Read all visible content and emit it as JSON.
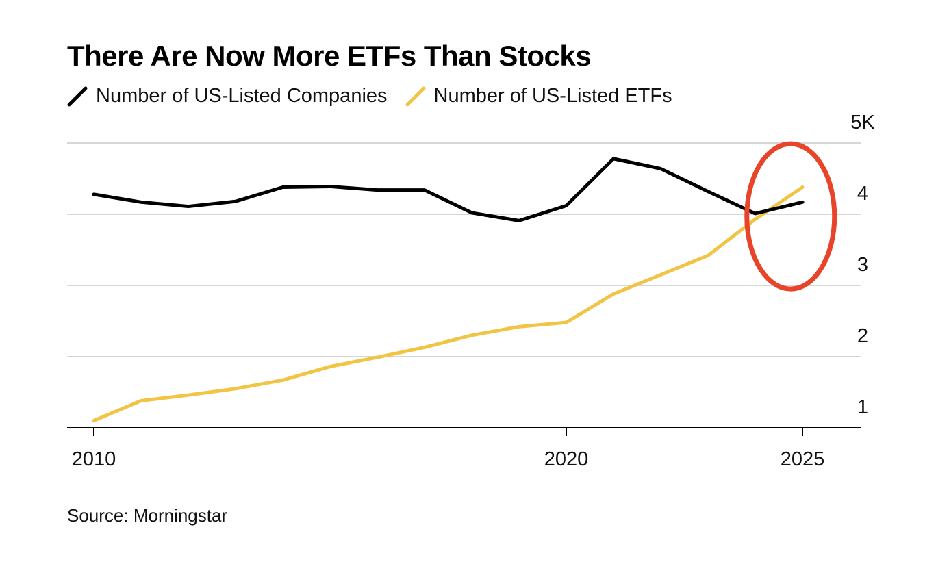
{
  "chart_data": {
    "type": "line",
    "title": "There Are Now More ETFs Than Stocks",
    "source": "Source: Morningstar",
    "x": [
      2010,
      2011,
      2012,
      2013,
      2014,
      2015,
      2016,
      2017,
      2018,
      2019,
      2020,
      2021,
      2022,
      2023,
      2024,
      2025
    ],
    "series": [
      {
        "name": "Number of US-Listed Companies",
        "color": "#000000",
        "values": [
          4.28,
          4.17,
          4.11,
          4.18,
          4.38,
          4.39,
          4.34,
          4.34,
          4.02,
          3.91,
          4.12,
          4.78,
          4.64,
          4.32,
          4.01,
          4.17
        ]
      },
      {
        "name": "Number of US-Listed ETFs",
        "color": "#f2c443",
        "values": [
          1.1,
          1.38,
          1.46,
          1.55,
          1.67,
          1.86,
          1.99,
          2.13,
          2.3,
          2.42,
          2.48,
          2.88,
          3.15,
          3.42,
          3.93,
          4.38
        ]
      }
    ],
    "ylim": [
      1,
      5
    ],
    "yticks": [
      {
        "v": 5,
        "label": "5K"
      },
      {
        "v": 4,
        "label": "4"
      },
      {
        "v": 3,
        "label": "3"
      },
      {
        "v": 2,
        "label": "2"
      },
      {
        "v": 1,
        "label": "1"
      }
    ],
    "xticks": [
      {
        "v": 2010,
        "label": "2010"
      },
      {
        "v": 2020,
        "label": "2020"
      },
      {
        "v": 2025,
        "label": "2025"
      }
    ],
    "xlim": [
      2009.4,
      2026.2
    ],
    "annotation": {
      "type": "ellipse",
      "color": "#e8442a",
      "x": 2024.75,
      "y": 3.97
    }
  }
}
